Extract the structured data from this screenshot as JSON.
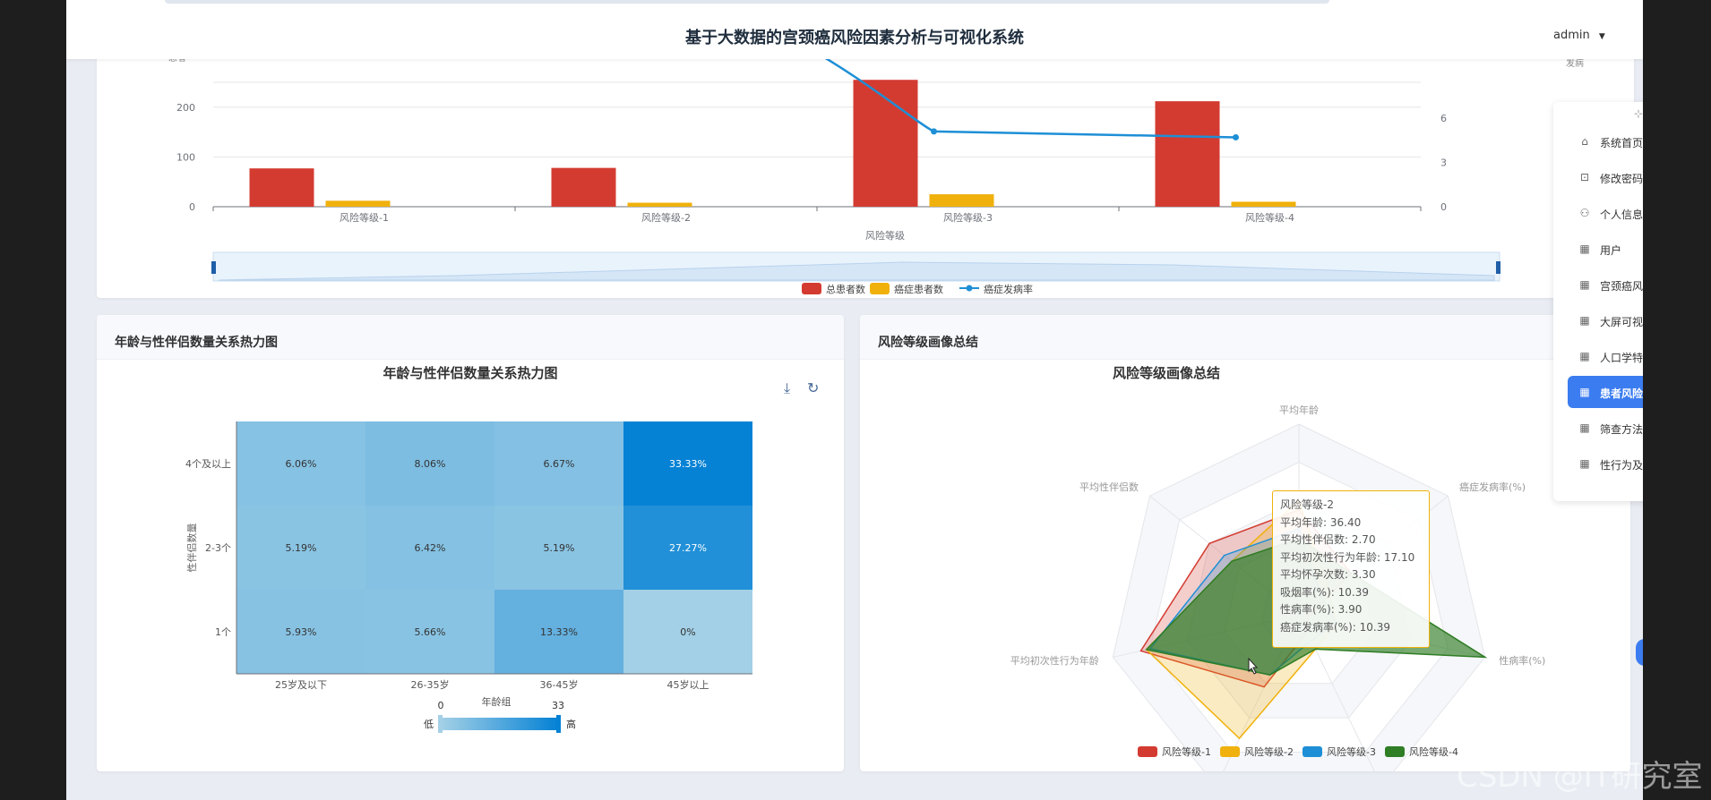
{
  "app": {
    "title": "基于大数据的宫颈癌风险因素分析与可视化系统",
    "user": "admin"
  },
  "sidebar": {
    "items": [
      {
        "label": "系统首页",
        "icon": "home-icon"
      },
      {
        "label": "修改密码",
        "icon": "lock-icon"
      },
      {
        "label": "个人信息",
        "icon": "user-icon"
      },
      {
        "label": "用户",
        "icon": "grid-icon"
      },
      {
        "label": "宫颈癌风",
        "icon": "grid-icon"
      },
      {
        "label": "大屏可视",
        "icon": "grid-icon"
      },
      {
        "label": "人口学特",
        "icon": "grid-icon"
      },
      {
        "label": "患者风险",
        "icon": "grid-icon",
        "active": true
      },
      {
        "label": "筛查方法",
        "icon": "grid-icon"
      },
      {
        "label": "性行为及",
        "icon": "grid-icon"
      }
    ]
  },
  "top_card": {
    "xlabel": "风险等级",
    "categories": [
      "风险等级-1",
      "风险等级-2",
      "风险等级-3",
      "风险等级-4"
    ],
    "left_ticks": [
      "0",
      "100",
      "200"
    ],
    "right_ticks": [
      "0",
      "3",
      "6"
    ],
    "legend": [
      "总患者数",
      "癌症患者数",
      "癌症发病率"
    ]
  },
  "heatmap_card": {
    "header": "年龄与性伴侣数量关系热力图",
    "title": "年龄与性伴侣数量关系热力图",
    "xlabel": "年龄组",
    "ylabel": "性伴侣数量",
    "x_categories": [
      "25岁及以下",
      "26-35岁",
      "36-45岁",
      "45岁以上"
    ],
    "y_categories": [
      "1个",
      "2-3个",
      "4个及以上"
    ],
    "cells_text": [
      [
        "5.93%",
        "5.66%",
        "13.33%",
        "0%"
      ],
      [
        "5.19%",
        "6.42%",
        "5.19%",
        "27.27%"
      ],
      [
        "6.06%",
        "8.06%",
        "6.67%",
        "33.33%"
      ]
    ],
    "visualmap": {
      "min": "0",
      "max": "33",
      "low": "低",
      "high": "高"
    }
  },
  "radar_card": {
    "header": "风险等级画像总结",
    "title": "风险等级画像总结",
    "indicators": [
      "平均年龄",
      "癌症发病率(%)",
      "性病率(%)",
      "吸烟率(%)",
      "平均怀孕次数",
      "平均初次性行为年龄",
      "平均性伴侣数"
    ],
    "legend": [
      "风险等级-1",
      "风险等级-2",
      "风险等级-3",
      "风险等级-4"
    ],
    "tooltip": {
      "title": "风险等级-2",
      "lines": [
        "平均年龄: 36.40",
        "平均性伴侣数: 2.70",
        "平均初次性行为年龄: 17.10",
        "平均怀孕次数: 3.30",
        "吸烟率(%): 10.39",
        "性病率(%): 3.90",
        "癌症发病率(%): 10.39"
      ]
    }
  },
  "colors": {
    "red": "#d33b31",
    "yellow": "#f0b10c",
    "blue": "#1e8fd6",
    "green": "#2f7d25",
    "accent": "#3b7cf0"
  },
  "watermark": "CSDN @IT研究室",
  "chart_data": [
    {
      "type": "bar",
      "categories": [
        "风险等级-1",
        "风险等级-2",
        "风险等级-3",
        "风险等级-4"
      ],
      "series": [
        {
          "name": "总患者数",
          "values": [
            77,
            78,
            255,
            212
          ]
        },
        {
          "name": "癌症患者数",
          "values": [
            12,
            8,
            25,
            10
          ]
        },
        {
          "name": "癌症发病率",
          "values": [
            null,
            null,
            5.1,
            4.7
          ]
        }
      ],
      "xlabel": "风险等级",
      "ylim": [
        0,
        250
      ]
    },
    {
      "type": "heatmap",
      "title": "年龄与性伴侣数量关系热力图",
      "x": [
        "25岁及以下",
        "26-35岁",
        "36-45岁",
        "45岁以上"
      ],
      "y": [
        "1个",
        "2-3个",
        "4个及以上"
      ],
      "values": [
        [
          5.93,
          5.66,
          13.33,
          0
        ],
        [
          5.19,
          6.42,
          5.19,
          27.27
        ],
        [
          6.06,
          8.06,
          6.67,
          33.33
        ]
      ],
      "xlabel": "年龄组",
      "ylabel": "性伴侣数量",
      "range": [
        0,
        33
      ]
    },
    {
      "type": "radar",
      "title": "风险等级画像总结",
      "indicators": [
        "平均年龄",
        "癌症发病率(%)",
        "性病率(%)",
        "吸烟率(%)",
        "平均怀孕次数",
        "平均初次性行为年龄",
        "平均性伴侣数"
      ],
      "series": [
        {
          "name": "风险等级-1",
          "values": [
            0.55,
            0.35,
            0.05,
            0.1,
            0.42,
            0.85,
            0.6
          ]
        },
        {
          "name": "风险等级-2",
          "values": [
            0.6,
            0.2,
            0.2,
            0.2,
            0.72,
            0.82,
            0.45
          ]
        },
        {
          "name": "风险等级-3",
          "values": [
            0.45,
            0.15,
            0.2,
            0.15,
            0.35,
            0.8,
            0.5
          ]
        },
        {
          "name": "风险等级-4",
          "values": [
            0.4,
            0.35,
            1.0,
            0.2,
            0.35,
            0.82,
            0.45
          ]
        }
      ]
    }
  ]
}
